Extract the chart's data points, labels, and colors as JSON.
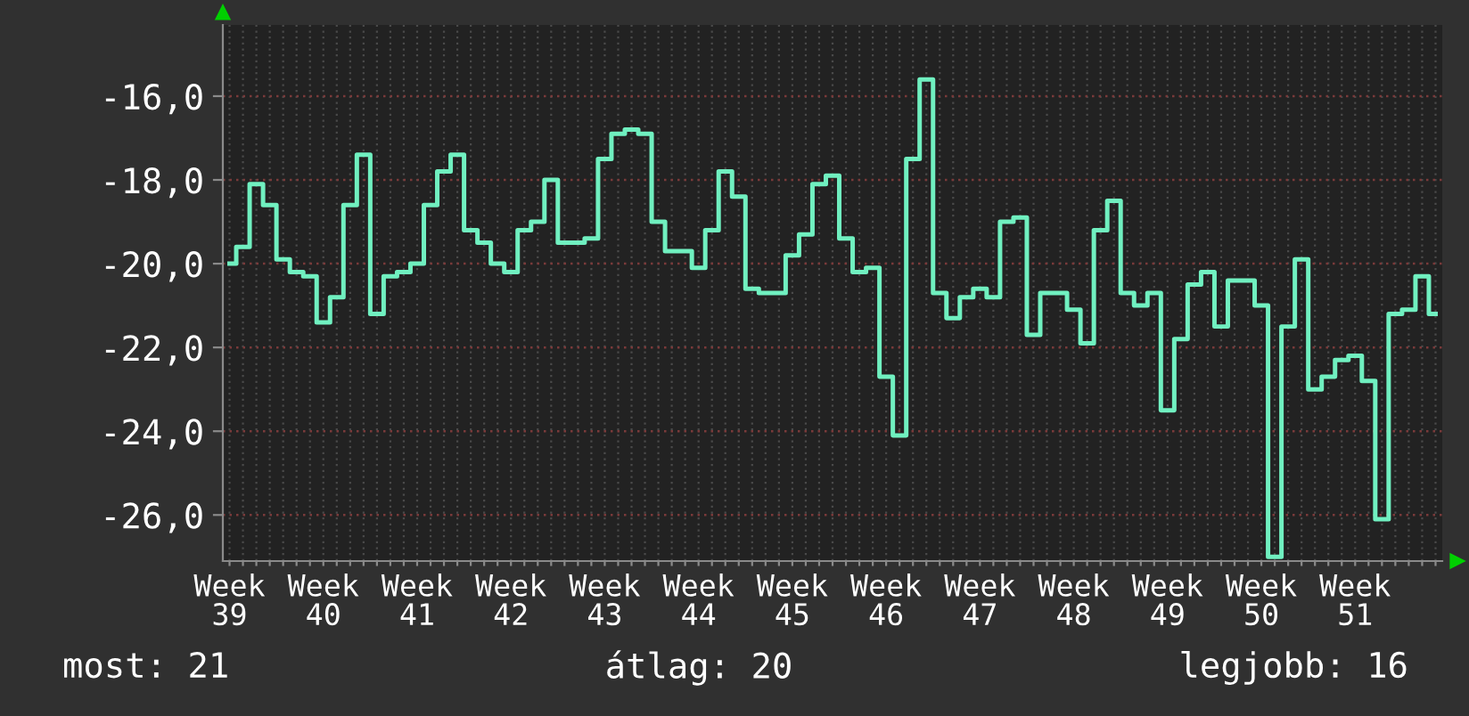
{
  "chart_data": {
    "type": "step",
    "categories": [
      "Week 39",
      null,
      null,
      null,
      null,
      null,
      null,
      "Week 40",
      null,
      null,
      null,
      null,
      null,
      null,
      "Week 41",
      null,
      null,
      null,
      null,
      null,
      null,
      "Week 42",
      null,
      null,
      null,
      null,
      null,
      null,
      "Week 43",
      null,
      null,
      null,
      null,
      null,
      null,
      "Week 44",
      null,
      null,
      null,
      null,
      null,
      null,
      "Week 45",
      null,
      null,
      null,
      null,
      null,
      null,
      "Week 46",
      null,
      null,
      null,
      null,
      null,
      null,
      "Week 47",
      null,
      null,
      null,
      null,
      null,
      null,
      "Week 48",
      null,
      null,
      null,
      null,
      null,
      null,
      "Week 49",
      null,
      null,
      null,
      null,
      null,
      null,
      "Week 50",
      null,
      null,
      null,
      null,
      null,
      null,
      "Week 51",
      null,
      null,
      null,
      null,
      null,
      null
    ],
    "values": [
      -20.0,
      -19.6,
      -18.1,
      -18.6,
      -19.9,
      -20.2,
      -20.3,
      -21.4,
      -20.8,
      -18.6,
      -17.4,
      -21.2,
      -20.3,
      -20.2,
      -20.0,
      -18.6,
      -17.8,
      -17.4,
      -19.2,
      -19.5,
      -20.0,
      -20.2,
      -19.2,
      -19.0,
      -18.0,
      -19.5,
      -19.5,
      -19.4,
      -17.5,
      -16.9,
      -16.8,
      -16.9,
      -19.0,
      -19.7,
      -19.7,
      -20.1,
      -19.2,
      -17.8,
      -18.4,
      -20.6,
      -20.7,
      -20.7,
      -19.8,
      -19.3,
      -18.1,
      -17.9,
      -19.4,
      -20.2,
      -20.1,
      -22.7,
      -24.1,
      -17.5,
      -15.6,
      -20.7,
      -21.3,
      -20.8,
      -20.6,
      -20.8,
      -19.0,
      -18.9,
      -21.7,
      -20.7,
      -20.7,
      -21.1,
      -21.9,
      -19.2,
      -18.5,
      -20.7,
      -21.0,
      -20.7,
      -23.5,
      -21.8,
      -20.5,
      -20.2,
      -21.5,
      -20.4,
      -20.4,
      -21.0,
      -27.0,
      -21.5,
      -19.9,
      -23.0,
      -22.7,
      -22.3,
      -22.2,
      -22.8,
      -26.1,
      -21.2,
      -21.1,
      -20.3,
      -21.2
    ],
    "color": "#70f0c0",
    "ylim": [
      -27.1,
      -14.3
    ],
    "yticks": [
      {
        "value": -26,
        "label": "-26,0"
      },
      {
        "value": -24,
        "label": "-24,0"
      },
      {
        "value": -22,
        "label": "-22,0"
      },
      {
        "value": -20,
        "label": "-20,0"
      },
      {
        "value": -18,
        "label": "-18,0"
      },
      {
        "value": -16,
        "label": "-16,0"
      }
    ],
    "grid": true,
    "annotations": [
      "most: 21",
      "átlag: 20",
      "legjobb: 16"
    ]
  }
}
